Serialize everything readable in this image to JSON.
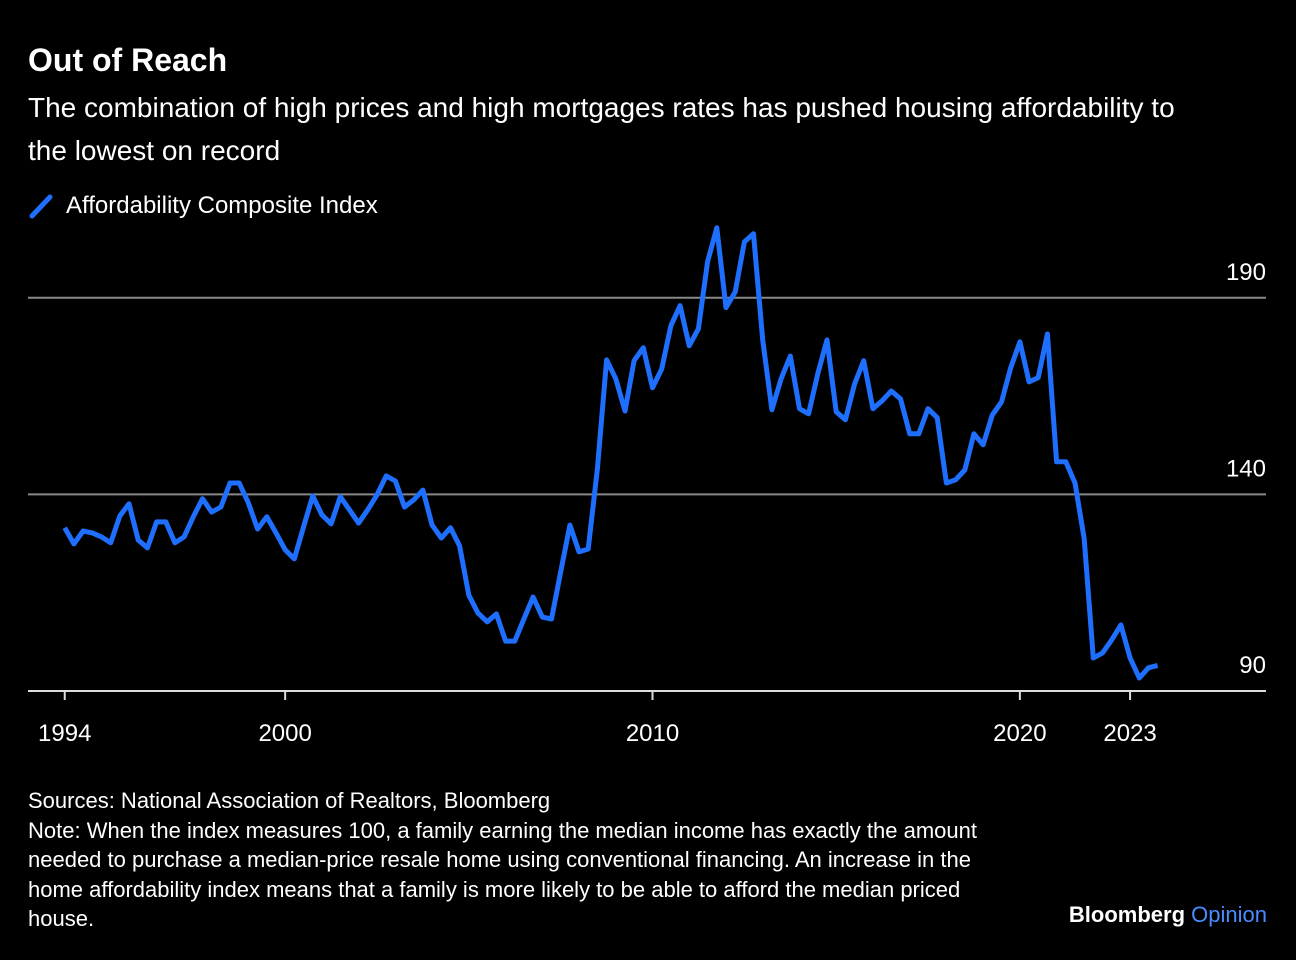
{
  "chart_data": {
    "type": "line",
    "title": "Out of Reach",
    "subtitle": "The combination of high prices and high mortgages rates has pushed housing affordability to the lowest on record",
    "x": [
      1994,
      1994.25,
      1994.5,
      1994.75,
      1995,
      1995.25,
      1995.5,
      1995.75,
      1996,
      1996.25,
      1996.5,
      1996.75,
      1997,
      1997.25,
      1997.5,
      1997.75,
      1998,
      1998.25,
      1998.5,
      1998.75,
      1999,
      1999.25,
      1999.5,
      1999.75,
      2000,
      2000.25,
      2000.5,
      2000.75,
      2001,
      2001.25,
      2001.5,
      2001.75,
      2002,
      2002.25,
      2002.5,
      2002.75,
      2003,
      2003.25,
      2003.5,
      2003.75,
      2004,
      2004.25,
      2004.5,
      2004.75,
      2005,
      2005.25,
      2005.5,
      2005.75,
      2006,
      2006.25,
      2006.5,
      2006.75,
      2007,
      2007.25,
      2007.5,
      2007.75,
      2008,
      2008.25,
      2008.5,
      2008.75,
      2009,
      2009.25,
      2009.5,
      2009.75,
      2010,
      2010.25,
      2010.5,
      2010.75,
      2011,
      2011.25,
      2011.5,
      2011.75,
      2012,
      2012.25,
      2012.5,
      2012.75,
      2013,
      2013.25,
      2013.5,
      2013.75,
      2014,
      2014.25,
      2014.5,
      2014.75,
      2015,
      2015.25,
      2015.5,
      2015.75,
      2016,
      2016.25,
      2016.5,
      2016.75,
      2017,
      2017.25,
      2017.5,
      2017.75,
      2018,
      2018.25,
      2018.5,
      2018.75,
      2019,
      2019.25,
      2019.5,
      2019.75,
      2020,
      2020.25,
      2020.5,
      2020.75,
      2021,
      2021.25,
      2021.5,
      2021.75,
      2022,
      2022.25,
      2022.5,
      2022.75,
      2023,
      2023.25,
      2023.5,
      2023.75
    ],
    "series": [
      {
        "name": "Affordability Composite Index",
        "color": "#1f6fff",
        "values": [
          131.5,
          127.4,
          130.7,
          130.2,
          129.2,
          127.7,
          134.5,
          137.6,
          128.4,
          126.4,
          133,
          133,
          127.7,
          129.2,
          134.3,
          138.9,
          135.5,
          136.8,
          142.9,
          142.9,
          137.8,
          131.2,
          134.3,
          130.2,
          125.9,
          123.6,
          131.7,
          139.6,
          134.8,
          132.5,
          139.4,
          136.1,
          132.7,
          136.1,
          139.9,
          144.7,
          143.4,
          136.8,
          138.6,
          141.1,
          132.2,
          128.9,
          131.5,
          126.9,
          114.4,
          109.8,
          107.6,
          109.6,
          102.7,
          102.7,
          108.3,
          113.9,
          108.8,
          108.3,
          120.3,
          132.2,
          125.4,
          126.1,
          146.5,
          174.2,
          169.4,
          161.2,
          174,
          177.3,
          167.1,
          171.9,
          182.9,
          188,
          177.8,
          182.1,
          199.2,
          207.8,
          187.5,
          191.5,
          204.2,
          206.3,
          179.3,
          161.5,
          169.4,
          175.2,
          161.8,
          160.5,
          170.7,
          179.3,
          161,
          159,
          168.1,
          174,
          161.8,
          163.8,
          166.3,
          164.3,
          155.4,
          155.4,
          161.8,
          159.5,
          142.9,
          143.7,
          146.2,
          155.4,
          152.6,
          160.2,
          163.5,
          172.2,
          178.8,
          168.6,
          169.7,
          180.8,
          148.3,
          148.3,
          142.9,
          128.7,
          98.4,
          99.7,
          103,
          106.8,
          98.4,
          93.3,
          95.9,
          96.5
        ]
      }
    ],
    "xlim": [
      1993,
      2026.7
    ],
    "xticks": [
      1994,
      2000,
      2010,
      2020,
      2023
    ],
    "ylim": [
      90,
      208
    ],
    "yticks": [
      90,
      140,
      190
    ],
    "grid": true,
    "source": "Sources: National Association of Realtors, Bloomberg",
    "note": "Note: When the index measures 100, a family earning the median income has exactly the amount needed to purchase a median-price resale home using conventional financing. An increase in the home affordability index means that a family is more likely to be able to afford the median priced house.",
    "brand": "Bloomberg",
    "brand_sub": "Opinion"
  }
}
